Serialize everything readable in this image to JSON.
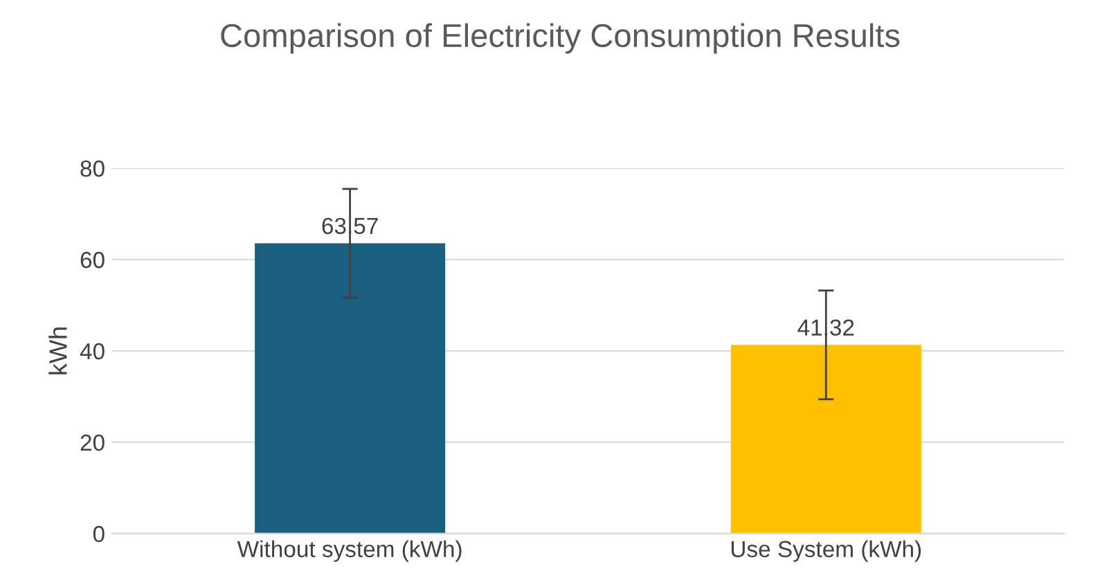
{
  "chart_data": {
    "type": "bar",
    "title": "Comparison of Electricity Consumption Results",
    "ylabel": "kWh",
    "categories": [
      "Without system (kWh)",
      "Use System (kWh)"
    ],
    "values": [
      63.57,
      41.32
    ],
    "colors": [
      "#1a5e80",
      "#ffc000"
    ],
    "errors": [
      11.9,
      11.9
    ],
    "ylim": [
      0,
      80
    ],
    "yticks": [
      0,
      20,
      40,
      60,
      80
    ],
    "grid": "y",
    "data_labels": true
  }
}
